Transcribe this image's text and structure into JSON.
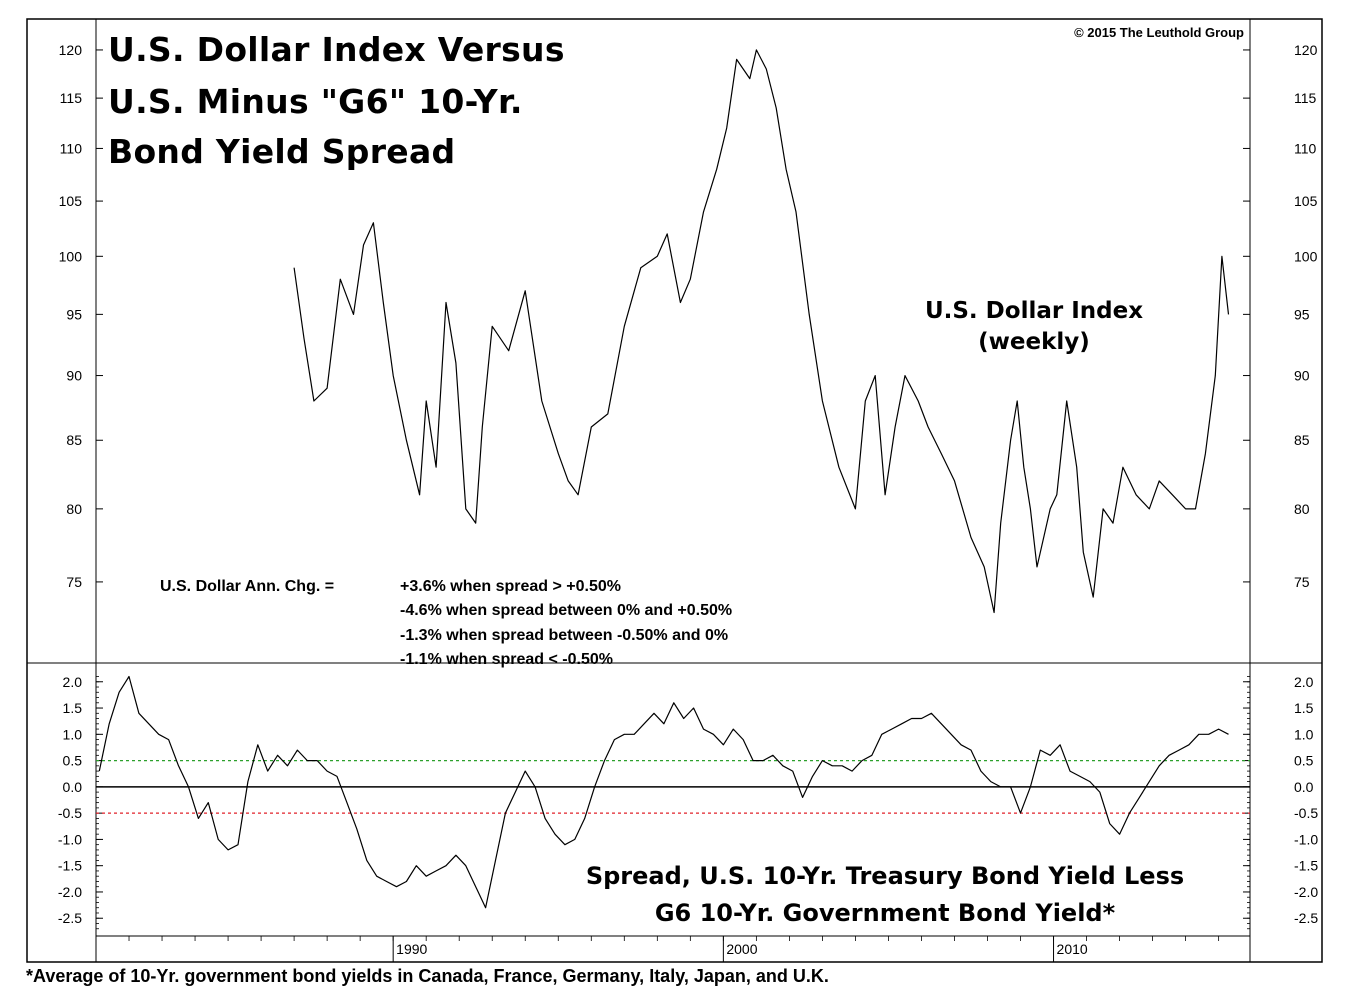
{
  "chart_data": [
    {
      "type": "line",
      "title": "U.S. Dollar Index Versus U.S. Minus \"G6\" 10-Yr. Bond Yield Spread",
      "title_lines": [
        "U.S. Dollar Index Versus",
        "U.S. Minus \"G6\" 10-Yr.",
        "Bond Yield Spread"
      ],
      "copyright": "© 2015  The Leuthold Group",
      "series_label_lines": [
        "U.S. Dollar Index",
        "(weekly)"
      ],
      "series": [
        {
          "name": "U.S. Dollar Index (weekly)",
          "x": [
            1987.0,
            1987.3,
            1987.6,
            1988.0,
            1988.4,
            1988.8,
            1989.1,
            1989.4,
            1989.7,
            1990.0,
            1990.4,
            1990.8,
            1991.0,
            1991.3,
            1991.6,
            1991.9,
            1992.2,
            1992.5,
            1992.7,
            1993.0,
            1993.5,
            1994.0,
            1994.5,
            1995.0,
            1995.3,
            1995.6,
            1996.0,
            1996.5,
            1997.0,
            1997.5,
            1998.0,
            1998.3,
            1998.7,
            1999.0,
            1999.4,
            1999.8,
            2000.1,
            2000.4,
            2000.8,
            2001.0,
            2001.3,
            2001.6,
            2001.9,
            2002.2,
            2002.6,
            2003.0,
            2003.5,
            2004.0,
            2004.3,
            2004.6,
            2004.9,
            2005.2,
            2005.5,
            2005.9,
            2006.2,
            2006.6,
            2007.0,
            2007.5,
            2007.9,
            2008.2,
            2008.4,
            2008.7,
            2008.9,
            2009.1,
            2009.3,
            2009.5,
            2009.9,
            2010.1,
            2010.4,
            2010.7,
            2010.9,
            2011.2,
            2011.5,
            2011.8,
            2012.1,
            2012.5,
            2012.9,
            2013.2,
            2013.6,
            2014.0,
            2014.3,
            2014.6,
            2014.9,
            2015.1,
            2015.3
          ],
          "values": [
            99.0,
            93.0,
            88.0,
            89.0,
            98.0,
            95.0,
            101.0,
            103.0,
            96.0,
            90.0,
            85.0,
            81.0,
            88.0,
            83.0,
            96.0,
            91.0,
            80.0,
            79.0,
            86.0,
            94.0,
            92.0,
            97.0,
            88.0,
            84.0,
            82.0,
            81.0,
            86.0,
            87.0,
            94.0,
            99.0,
            100.0,
            102.0,
            96.0,
            98.0,
            104.0,
            108.0,
            112.0,
            119.0,
            117.0,
            120.0,
            118.0,
            114.0,
            108.0,
            104.0,
            95.0,
            88.0,
            83.0,
            80.0,
            88.0,
            90.0,
            81.0,
            86.0,
            90.0,
            88.0,
            86.0,
            84.0,
            82.0,
            78.0,
            76.0,
            73.0,
            79.0,
            85.0,
            88.0,
            83.0,
            80.0,
            76.0,
            80.0,
            81.0,
            88.0,
            83.0,
            77.0,
            74.0,
            80.0,
            79.0,
            83.0,
            81.0,
            80.0,
            82.0,
            81.0,
            80.0,
            80.0,
            84.0,
            90.0,
            100.0,
            95.0
          ]
        }
      ],
      "ylim": [
        70,
        123
      ],
      "yticks": [
        "75",
        "80",
        "85",
        "90",
        "95",
        "100",
        "105",
        "110",
        "115",
        "120"
      ],
      "annotation": {
        "label": "U.S. Dollar Ann. Chg.  =",
        "lines": [
          "+3.6% when spread  >  +0.50%",
          "-4.6% when spread between 0% and +0.50%",
          "-1.3% when spread between -0.50% and 0%",
          "-1.1% when spread < -0.50%"
        ]
      }
    },
    {
      "type": "line",
      "title_lines": [
        "Spread, U.S. 10-Yr. Treasury Bond Yield Less",
        "G6 10-Yr. Government Bond Yield*"
      ],
      "series": [
        {
          "name": "Spread, U.S. 10-Yr. Treasury Bond Yield Less G6 10-Yr. Government Bond Yield",
          "x": [
            1981.1,
            1981.4,
            1981.7,
            1982.0,
            1982.3,
            1982.6,
            1982.9,
            1983.2,
            1983.5,
            1983.8,
            1984.1,
            1984.4,
            1984.7,
            1985.0,
            1985.3,
            1985.6,
            1985.9,
            1986.2,
            1986.5,
            1986.8,
            1987.1,
            1987.4,
            1987.7,
            1988.0,
            1988.3,
            1988.6,
            1988.9,
            1989.2,
            1989.5,
            1989.8,
            1990.1,
            1990.4,
            1990.7,
            1991.0,
            1991.3,
            1991.6,
            1991.9,
            1992.2,
            1992.5,
            1992.8,
            1993.1,
            1993.4,
            1993.7,
            1994.0,
            1994.3,
            1994.6,
            1994.9,
            1995.2,
            1995.5,
            1995.8,
            1996.1,
            1996.4,
            1996.7,
            1997.0,
            1997.3,
            1997.6,
            1997.9,
            1998.2,
            1998.5,
            1998.8,
            1999.1,
            1999.4,
            1999.7,
            2000.0,
            2000.3,
            2000.6,
            2000.9,
            2001.2,
            2001.5,
            2001.8,
            2002.1,
            2002.4,
            2002.7,
            2003.0,
            2003.3,
            2003.6,
            2003.9,
            2004.2,
            2004.5,
            2004.8,
            2005.1,
            2005.4,
            2005.7,
            2006.0,
            2006.3,
            2006.6,
            2006.9,
            2007.2,
            2007.5,
            2007.8,
            2008.1,
            2008.4,
            2008.7,
            2009.0,
            2009.3,
            2009.6,
            2009.9,
            2010.2,
            2010.5,
            2010.8,
            2011.1,
            2011.4,
            2011.7,
            2012.0,
            2012.3,
            2012.6,
            2012.9,
            2013.2,
            2013.5,
            2013.8,
            2014.1,
            2014.4,
            2014.7,
            2015.0,
            2015.3
          ],
          "values": [
            0.3,
            1.2,
            1.8,
            2.1,
            1.4,
            1.2,
            1.0,
            0.9,
            0.4,
            0.0,
            -0.6,
            -0.3,
            -1.0,
            -1.2,
            -1.1,
            0.1,
            0.8,
            0.3,
            0.6,
            0.4,
            0.7,
            0.5,
            0.5,
            0.3,
            0.2,
            -0.3,
            -0.8,
            -1.4,
            -1.7,
            -1.8,
            -1.9,
            -1.8,
            -1.5,
            -1.7,
            -1.6,
            -1.5,
            -1.3,
            -1.5,
            -1.9,
            -2.3,
            -1.4,
            -0.5,
            -0.1,
            0.3,
            0.0,
            -0.6,
            -0.9,
            -1.1,
            -1.0,
            -0.6,
            0.0,
            0.5,
            0.9,
            1.0,
            1.0,
            1.2,
            1.4,
            1.2,
            1.6,
            1.3,
            1.5,
            1.1,
            1.0,
            0.8,
            1.1,
            0.9,
            0.5,
            0.5,
            0.6,
            0.4,
            0.3,
            -0.2,
            0.2,
            0.5,
            0.4,
            0.4,
            0.3,
            0.5,
            0.6,
            1.0,
            1.1,
            1.2,
            1.3,
            1.3,
            1.4,
            1.2,
            1.0,
            0.8,
            0.7,
            0.3,
            0.1,
            0.0,
            0.0,
            -0.5,
            0.0,
            0.7,
            0.6,
            0.8,
            0.3,
            0.2,
            0.1,
            -0.1,
            -0.7,
            -0.9,
            -0.5,
            -0.2,
            0.1,
            0.4,
            0.6,
            0.7,
            0.8,
            1.0,
            1.0,
            1.1,
            1.0
          ]
        }
      ],
      "reference_lines": [
        {
          "name": "+0.50%",
          "value": 0.5,
          "color": "#2ca02c",
          "style": "dashed"
        },
        {
          "name": "0%",
          "value": 0.0,
          "color": "#000000",
          "style": "solid"
        },
        {
          "name": "-0.50%",
          "value": -0.5,
          "color": "#e0202a",
          "style": "dashed"
        }
      ],
      "ylim": [
        -2.8,
        2.3
      ],
      "yticks": [
        "2.0",
        "1.5",
        "1.0",
        "0.5",
        "0.0",
        "-0.5",
        "-1.0",
        "-1.5",
        "-2.0",
        "-2.5"
      ]
    }
  ],
  "x_axis": {
    "xlim": [
      1981.0,
      2015.95
    ],
    "ticks": [
      {
        "label": "1990",
        "value": 1990
      },
      {
        "label": "2000",
        "value": 2000
      },
      {
        "label": "2010",
        "value": 2010
      }
    ]
  },
  "footnote": "*Average of 10-Yr. government bond yields in Canada, France, Germany, Italy, Japan, and U.K.",
  "colors": {
    "line": "#000000",
    "green_ref": "#2ca02c",
    "red_ref": "#e0202a"
  }
}
